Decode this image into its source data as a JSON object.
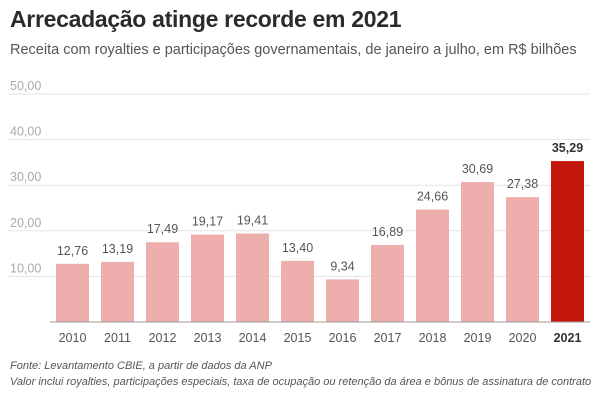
{
  "header": {
    "title": "Arrecadação atinge recorde em 2021",
    "subtitle": "Receita com royalties e participações governamentais, de janeiro a julho, em R$ bilhões"
  },
  "footer": {
    "source": "Fonte: Levantamento CBIE, a partir de dados da ANP",
    "note": "Valor inclui royalties, participações especiais, taxa de ocupação ou retenção da área e bônus de assinatura de contrato"
  },
  "chart_data": {
    "type": "bar",
    "title": "Arrecadação atinge recorde em 2021",
    "subtitle": "Receita com royalties e participações governamentais, de janeiro a julho, em R$ bilhões",
    "categories": [
      "2010",
      "2011",
      "2012",
      "2013",
      "2014",
      "2015",
      "2016",
      "2017",
      "2018",
      "2019",
      "2020",
      "2021"
    ],
    "values": [
      12.76,
      13.19,
      17.49,
      19.17,
      19.41,
      13.4,
      9.34,
      16.89,
      24.66,
      30.69,
      27.38,
      35.29
    ],
    "value_labels": [
      "12,76",
      "13,19",
      "17,49",
      "19,17",
      "19,41",
      "13,40",
      "9,34",
      "16,89",
      "24,66",
      "30,69",
      "27,38",
      "35,29"
    ],
    "y_ticks": [
      10,
      20,
      30,
      40,
      50
    ],
    "y_tick_labels": [
      "10,00",
      "20,00",
      "30,00",
      "40,00",
      "50,00"
    ],
    "ylim": [
      0,
      50
    ],
    "xlabel": "",
    "ylabel": "",
    "grid": true,
    "highlight_category": "2021",
    "colors": {
      "bar": "#eeaeae",
      "highlight": "#c4170c",
      "grid": "#e3e3e3",
      "axis": "#9a9a9a",
      "tick_text": "#aaaaaa",
      "label_text": "#555555",
      "highlight_text": "#333333"
    }
  }
}
